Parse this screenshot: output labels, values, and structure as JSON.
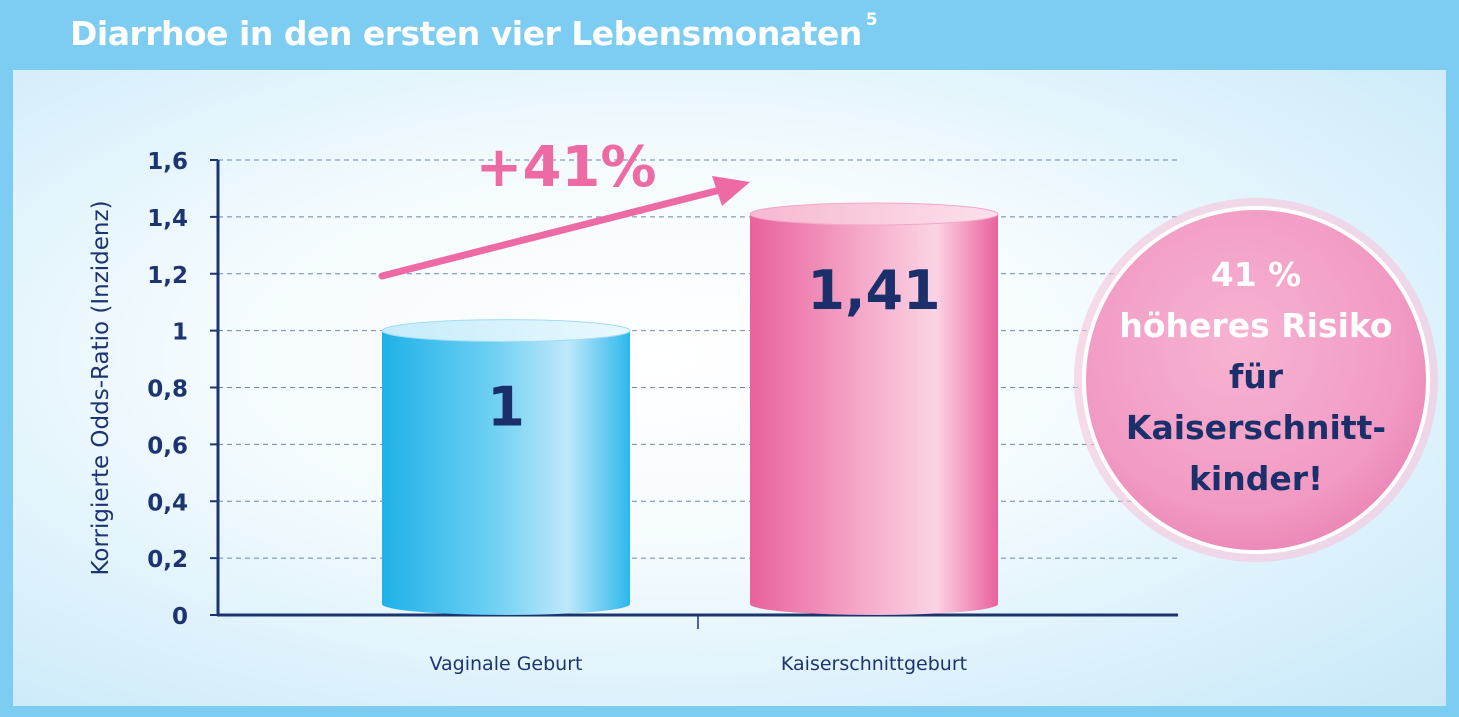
{
  "title": "Diarrhoe in den ersten vier Lebensmonaten",
  "title_sup": "5",
  "colors": {
    "header_bg": "#7ccdf1",
    "axis": "#1c3470",
    "bar_blue": "#29b9ec",
    "bar_pink": "#ec6aa1",
    "arrow": "#ee6aa5",
    "value_text": "#1b2f6b",
    "badge": "#f19ac3"
  },
  "chart_data": {
    "type": "bar",
    "title": "Diarrhoe in den ersten vier Lebensmonaten",
    "ylabel": "Korrigierte Odds-Ratio (Inzidenz)",
    "xlabel": "",
    "ylim": [
      0,
      1.6
    ],
    "yticks": [
      "0",
      "0,2",
      "0,4",
      "0,6",
      "0,8",
      "1",
      "1,2",
      "1,4",
      "1,6"
    ],
    "categories": [
      "Vaginale Geburt",
      "Kaiserschnittgeburt"
    ],
    "values": [
      1,
      1.41
    ],
    "value_labels": [
      "1",
      "1,41"
    ],
    "grid": true,
    "annotation": "+41%"
  },
  "badge": {
    "lines": [
      "41 %",
      "höheres Risiko",
      "für",
      "Kaiserschnitt-",
      "kinder!"
    ]
  }
}
